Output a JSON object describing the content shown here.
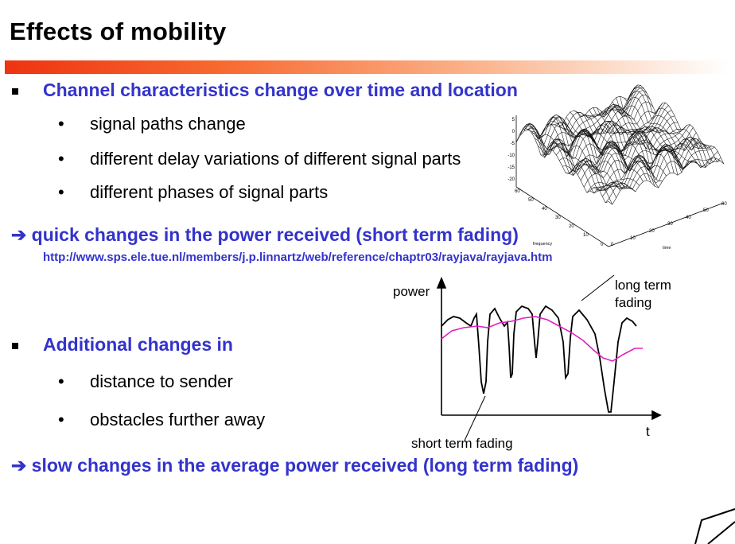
{
  "slide": {
    "title": "Effects of mobility",
    "bullet1": {
      "text": "Channel characteristics change over time and location",
      "subs": [
        "signal paths change",
        "different delay variations of different signal parts",
        "different phases of signal parts"
      ]
    },
    "conclusion1": "quick changes in the power received (short term fading)",
    "url": "http://www.sps.ele.tue.nl/members/j.p.linnartz/web/reference/chaptr03/rayjava/rayjava.htm",
    "bullet2": {
      "text": "Additional changes in",
      "subs": [
        "distance to sender",
        "obstacles further away"
      ]
    },
    "conclusion2": "slow changes in the average power received (long term fading)",
    "arrow_glyph": "➔",
    "square_glyph": "▪",
    "dot_glyph": "•"
  },
  "surface_plot": {
    "z_ticks": [
      "5",
      "0",
      "-5",
      "-10",
      "-15",
      "-20"
    ],
    "freq_ticks": [
      "60",
      "50",
      "40",
      "30",
      "20",
      "10",
      "0"
    ],
    "time_ticks": [
      "0",
      "10",
      "20",
      "30",
      "40",
      "50",
      "60"
    ],
    "freq_label": "frequency",
    "time_label": "time"
  },
  "fading_chart": {
    "y_label": "power",
    "x_label": "t",
    "long_term_label_1": "long term",
    "long_term_label_2": "fading",
    "short_term_label": "short term fading",
    "colors": {
      "signal": "#000000",
      "average": "#e020c0"
    }
  },
  "chart_data": {
    "type": "line",
    "title": "",
    "xlabel": "t",
    "ylabel": "power",
    "annotations": [
      "long term fading",
      "short term fading"
    ]
  }
}
